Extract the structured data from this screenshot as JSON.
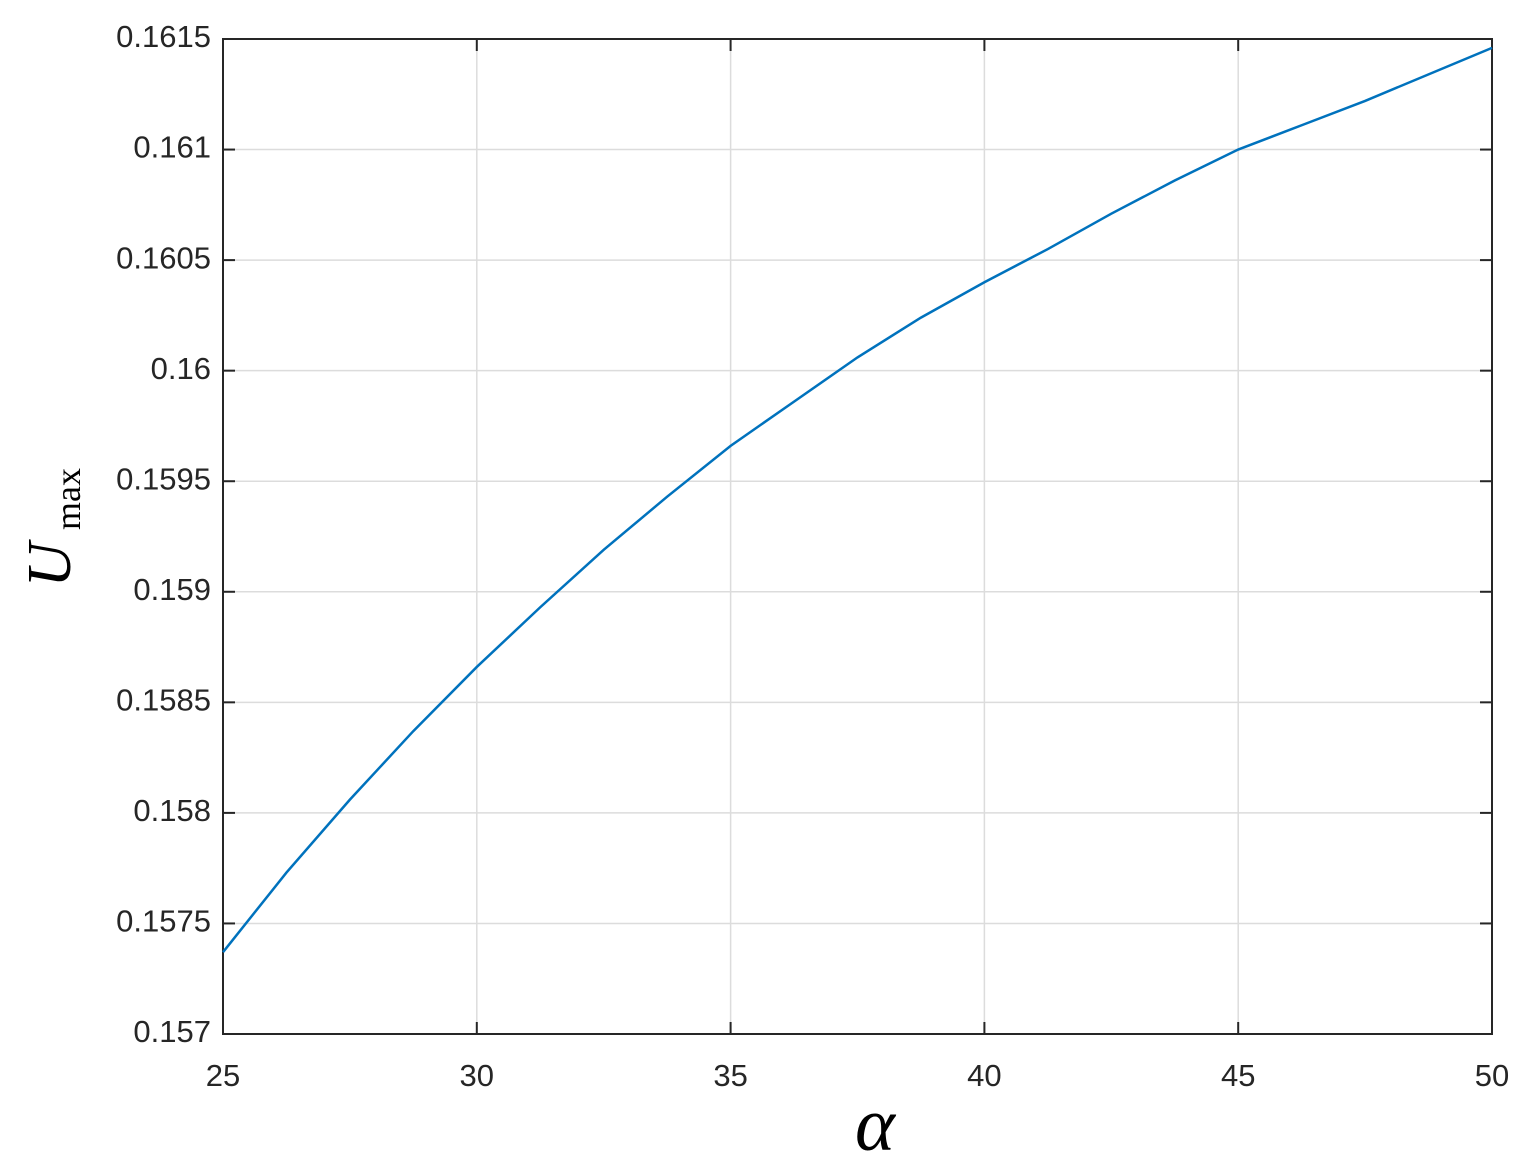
{
  "chart_data": {
    "type": "line",
    "xlabel": "α",
    "ylabel": {
      "main": "U",
      "sub": "max"
    },
    "x": [
      25,
      26.25,
      27.5,
      28.75,
      30,
      31.25,
      32.5,
      33.75,
      35,
      36.25,
      37.5,
      38.75,
      40,
      41.25,
      42.5,
      43.75,
      45,
      46.25,
      47.5,
      48.75,
      50
    ],
    "values": [
      0.15737,
      0.15773,
      0.15806,
      0.15837,
      0.15866,
      0.15893,
      0.15919,
      0.15943,
      0.15966,
      0.15986,
      0.16006,
      0.16024,
      0.1604,
      0.16055,
      0.16071,
      0.16086,
      0.161,
      0.16111,
      0.16122,
      0.16134,
      0.16146
    ],
    "color": "#0072bd",
    "xlim": [
      25,
      50
    ],
    "xticks": [
      25,
      30,
      35,
      40,
      45,
      50
    ],
    "ylim": [
      0.157,
      0.1615
    ],
    "yticks": [
      0.157,
      0.1575,
      0.158,
      0.1585,
      0.159,
      0.1595,
      0.16,
      0.1605,
      0.161,
      0.1615
    ],
    "grid": true
  }
}
